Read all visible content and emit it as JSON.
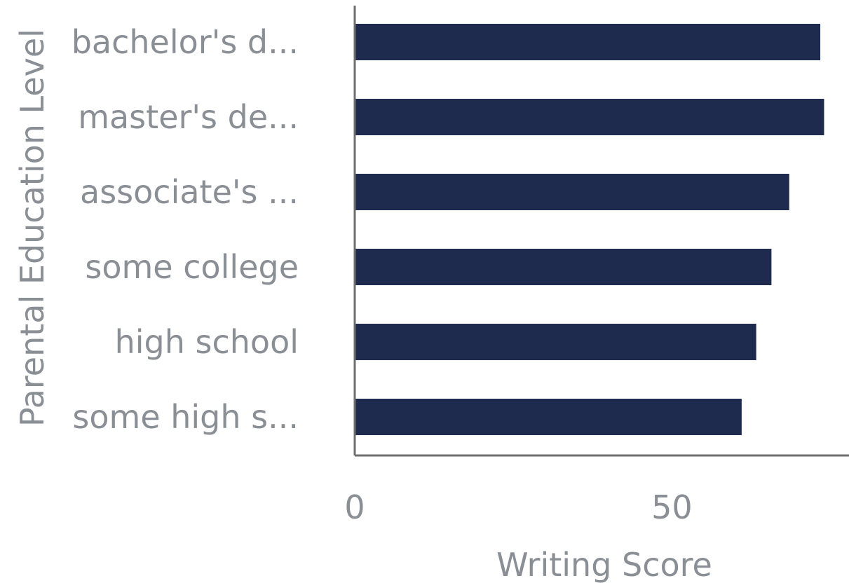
{
  "chart_data": {
    "type": "bar",
    "orientation": "horizontal",
    "categories": [
      "bachelor's d...",
      "master's de...",
      "associate's ...",
      "some college",
      "high school",
      "some high s..."
    ],
    "series": [
      {
        "values": [
          73.4,
          74.0,
          68.5,
          65.7,
          63.3,
          61.0
        ]
      }
    ],
    "xlabel": "Writing Score",
    "ylabel": "Parental Education Level",
    "xticks": [
      0,
      50
    ],
    "xlim": [
      0,
      74.5
    ],
    "grid": false,
    "colors": {
      "bar": "#1f2a4f",
      "axis": "#6f6f6f",
      "text": "#8a8f96"
    }
  }
}
